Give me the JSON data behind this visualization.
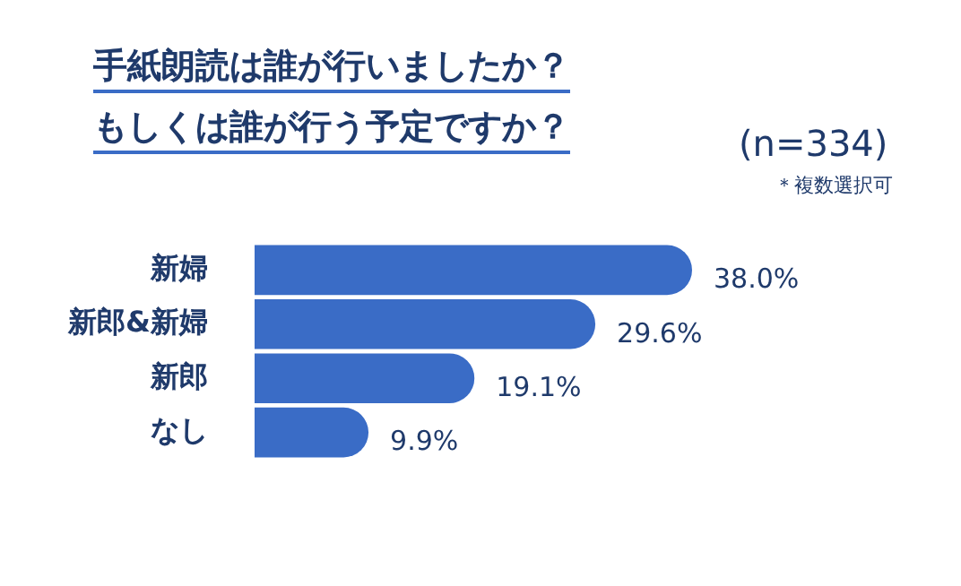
{
  "chart_data": {
    "type": "bar",
    "orientation": "horizontal",
    "title": "手紙朗読は誰が行いましたか？もしくは誰が行う予定ですか？",
    "annotations": [
      "(n=334)",
      "＊複数選択可"
    ],
    "categories": [
      "新婦",
      "新郎&新婦",
      "新郎",
      "なし"
    ],
    "values": [
      38.0,
      29.6,
      19.1,
      9.9
    ],
    "value_labels": [
      "38.0%",
      "29.6%",
      "19.1%",
      "9.9%"
    ],
    "color": "#3a6cc6"
  }
}
